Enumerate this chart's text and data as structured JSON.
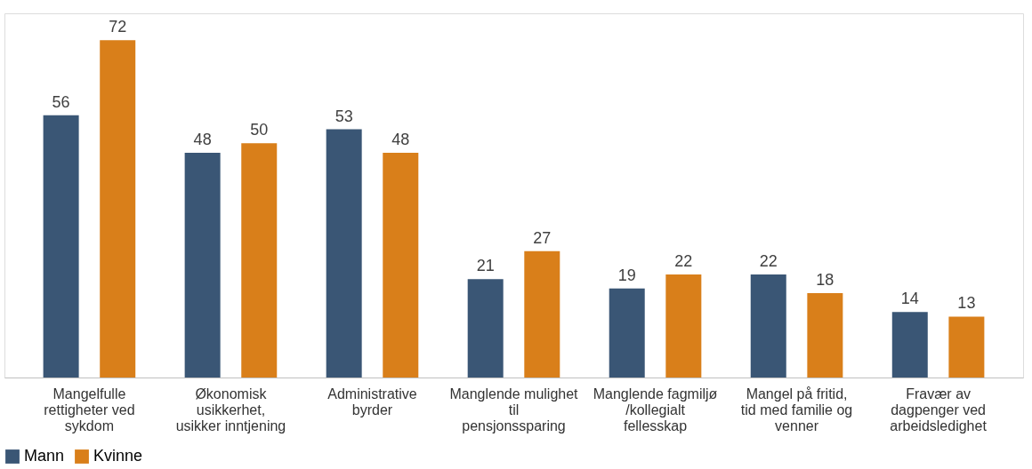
{
  "chart_data": {
    "type": "bar",
    "categories": [
      "Mangelfulle rettigheter ved sykdom",
      "Økonomisk usikkerhet, usikker inntjening",
      "Administrative byrder",
      "Manglende mulighet til pensjonssparing",
      "Manglende fagmiljø/kollegialt fellesskap",
      "Mangel på fritid, tid med familie og venner",
      "Fravær av dagpenger ved arbeidsledighet"
    ],
    "series": [
      {
        "name": "Mann",
        "color": "#3a5675",
        "values": [
          56,
          48,
          53,
          21,
          19,
          22,
          14
        ]
      },
      {
        "name": "Kvinne",
        "color": "#d97f1a",
        "values": [
          72,
          50,
          48,
          27,
          22,
          18,
          13
        ]
      }
    ],
    "data_labels": true,
    "legend": "bottom",
    "grid": false
  }
}
